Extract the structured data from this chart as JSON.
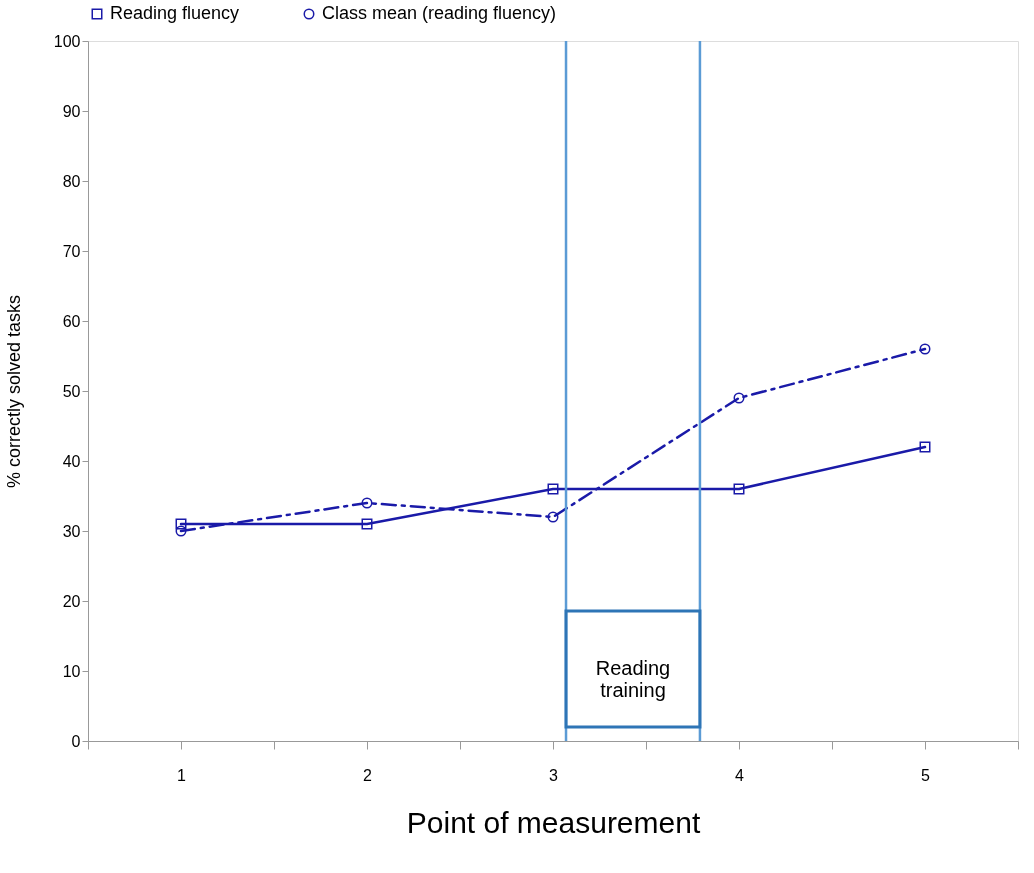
{
  "chart_data": {
    "type": "line",
    "xlabel": "Point of measurement",
    "ylabel": "% correctly solved tasks",
    "x": [
      1,
      2,
      3,
      4,
      5
    ],
    "xlim": [
      0.5,
      5.5
    ],
    "xticks": [
      {
        "value": 0.5,
        "label": null
      },
      1,
      {
        "value": 1.5,
        "label": null
      },
      2,
      {
        "value": 2.5,
        "label": null
      },
      3,
      {
        "value": 3.5,
        "label": null
      },
      4,
      {
        "value": 4.5,
        "label": null
      },
      5,
      {
        "value": 5.5,
        "label": null
      }
    ],
    "ylim": [
      0,
      100
    ],
    "yticks": [
      0,
      10,
      20,
      30,
      40,
      50,
      60,
      70,
      80,
      90,
      100
    ],
    "series": [
      {
        "name": "Reading fluency",
        "color": "#1a1aa8",
        "values": [
          31,
          31,
          36,
          36,
          42
        ],
        "marker": "square",
        "line_style": "solid"
      },
      {
        "name": "Class mean (reading fluency)",
        "color": "#1a1aa8",
        "values": [
          30,
          34,
          32,
          49,
          56
        ],
        "marker": "circle",
        "line_style": "dashed"
      }
    ],
    "ref_lines": [
      {
        "axis": "x",
        "value": 3.07,
        "color": "#5b9bd5"
      },
      {
        "axis": "x",
        "value": 3.79,
        "color": "#5b9bd5"
      }
    ],
    "annotations": [
      "Reading training"
    ],
    "grid": false,
    "legend": "top"
  }
}
